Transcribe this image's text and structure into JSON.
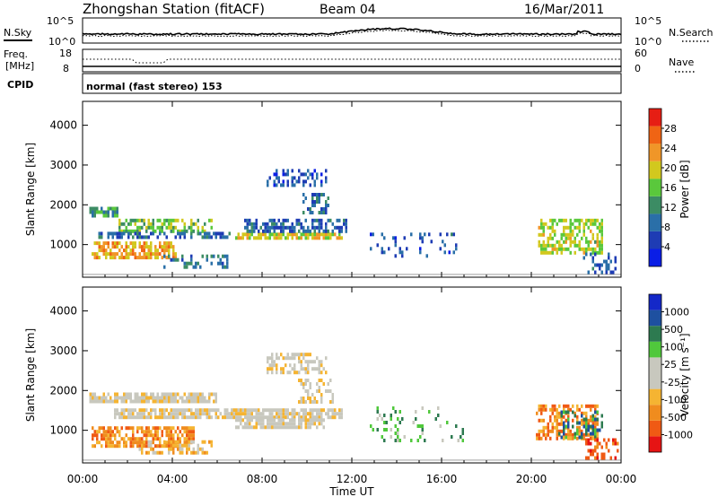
{
  "header": {
    "title": "Zhongshan Station (fitACF)",
    "beam": "Beam 04",
    "date": "16/Mar/2011"
  },
  "noise_panel": {
    "left_label": "N.Sky",
    "left_ticks": [
      "10^5",
      "10^0"
    ],
    "right_label": "N.Search",
    "right_ticks": [
      "10^5",
      "10^0"
    ]
  },
  "freq_panel": {
    "left_label_line1": "Freq.",
    "left_label_line2": "[MHz]",
    "left_ticks": [
      "18",
      "8"
    ],
    "right_label": "Nave",
    "right_ticks": [
      "60",
      "0"
    ]
  },
  "cpid_panel": {
    "label": "CPID",
    "text": "normal (fast stereo) 153"
  },
  "colors": {
    "power_scale": [
      "#0a1ee6",
      "#1e3cb4",
      "#2a6fa8",
      "#3c8c64",
      "#5ac83c",
      "#d2c81e",
      "#f09628",
      "#f06414",
      "#e61e14"
    ],
    "velocity_scale": [
      "#e61414",
      "#f05a14",
      "#f08c1e",
      "#f5b432",
      "#c8c8be",
      "#c8c8be",
      "#50c83c",
      "#2d7a50",
      "#1e50a0",
      "#1428c8"
    ]
  },
  "chart_data": [
    {
      "type": "heatmap",
      "name": "power",
      "ylabel": "Slant Range [km]",
      "ylim": [
        180,
        4600
      ],
      "yticks": [
        "1000",
        "2000",
        "3000",
        "4000"
      ],
      "ytick_values": [
        1000,
        2000,
        3000,
        4000
      ],
      "xlim": [
        0,
        24
      ],
      "colorbar_label": "Power [dB]",
      "colorbar_ticks": [
        "4",
        "8",
        "12",
        "16",
        "20",
        "24",
        "28"
      ],
      "colorbar_range": [
        0,
        32
      ],
      "regions": [
        {
          "t0": 0.3,
          "t1": 1.6,
          "r0": 1720,
          "r1": 1950,
          "level": 12,
          "density": 0.7
        },
        {
          "t0": 1.6,
          "t1": 5.8,
          "r0": 1350,
          "r1": 1650,
          "level": 16,
          "density": 0.6
        },
        {
          "t0": 0.5,
          "t1": 6.6,
          "r0": 1180,
          "r1": 1320,
          "level": 8,
          "density": 0.5
        },
        {
          "t0": 0.4,
          "t1": 4.2,
          "r0": 650,
          "r1": 1080,
          "level": 22,
          "density": 0.7
        },
        {
          "t0": 3.5,
          "t1": 6.5,
          "r0": 420,
          "r1": 750,
          "level": 10,
          "density": 0.35
        },
        {
          "t0": 6.8,
          "t1": 11.6,
          "r0": 1150,
          "r1": 1300,
          "level": 20,
          "density": 0.8
        },
        {
          "t0": 7.2,
          "t1": 11.8,
          "r0": 1350,
          "r1": 1650,
          "level": 8,
          "density": 0.55
        },
        {
          "t0": 8.2,
          "t1": 10.9,
          "r0": 2500,
          "r1": 2900,
          "level": 6,
          "density": 0.45
        },
        {
          "t0": 9.8,
          "t1": 11.0,
          "r0": 1800,
          "r1": 2300,
          "level": 9,
          "density": 0.5
        },
        {
          "t0": 12.8,
          "t1": 16.6,
          "r0": 700,
          "r1": 1300,
          "level": 7,
          "density": 0.16
        },
        {
          "t0": 20.3,
          "t1": 23.2,
          "r0": 800,
          "r1": 1650,
          "level": 18,
          "density": 0.55
        },
        {
          "t0": 22.2,
          "t1": 23.8,
          "r0": 300,
          "r1": 800,
          "level": 8,
          "density": 0.3
        }
      ]
    },
    {
      "type": "heatmap",
      "name": "velocity",
      "ylabel": "Slant Range [km]",
      "ylim": [
        180,
        4600
      ],
      "yticks": [
        "1000",
        "2000",
        "3000",
        "4000"
      ],
      "ytick_values": [
        1000,
        2000,
        3000,
        4000
      ],
      "xlim": [
        0,
        24
      ],
      "xticks": [
        "00:00",
        "04:00",
        "08:00",
        "12:00",
        "16:00",
        "20:00",
        "00:00"
      ],
      "xlabel": "Time UT",
      "colorbar_label": "Velocity [m s⁻¹]",
      "colorbar_ticks": [
        "-1000",
        "-500",
        "-100",
        "-25",
        "25",
        "100",
        "500",
        "1000"
      ],
      "regions": [
        {
          "t0": 0.3,
          "t1": 6.0,
          "r0": 1700,
          "r1": 1950,
          "class": 4,
          "density": 0.8
        },
        {
          "t0": 1.4,
          "t1": 11.6,
          "r0": 1350,
          "r1": 1550,
          "class": 4,
          "density": 0.85
        },
        {
          "t0": 6.8,
          "t1": 10.8,
          "r0": 1100,
          "r1": 1300,
          "class": 4,
          "density": 0.8
        },
        {
          "t0": 8.2,
          "t1": 10.9,
          "r0": 2450,
          "r1": 2950,
          "class": 4,
          "density": 0.5
        },
        {
          "t0": 9.6,
          "t1": 11.2,
          "r0": 1700,
          "r1": 2300,
          "class": 4,
          "density": 0.45
        },
        {
          "t0": 0.4,
          "t1": 5.0,
          "r0": 600,
          "r1": 1100,
          "class": 2,
          "density": 0.7
        },
        {
          "t0": 2.5,
          "t1": 5.8,
          "r0": 400,
          "r1": 750,
          "class": 3,
          "density": 0.5
        },
        {
          "t0": 12.8,
          "t1": 17.0,
          "r0": 700,
          "r1": 1600,
          "class": 6,
          "density": 0.15
        },
        {
          "t0": 20.2,
          "t1": 23.0,
          "r0": 800,
          "r1": 1650,
          "class": 2,
          "density": 0.55
        },
        {
          "t0": 21.2,
          "t1": 23.2,
          "r0": 800,
          "r1": 1500,
          "class": 7,
          "density": 0.35
        },
        {
          "t0": 22.4,
          "t1": 23.8,
          "r0": 300,
          "r1": 800,
          "class": 1,
          "density": 0.3
        }
      ]
    }
  ]
}
